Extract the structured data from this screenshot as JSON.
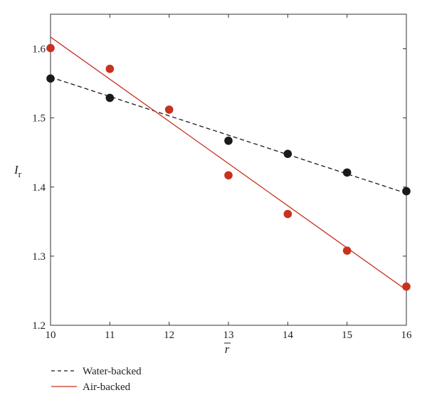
{
  "chart_data": {
    "type": "scatter",
    "xlabel": "r",
    "ylabel": "I",
    "ylabel_subscript": "r",
    "xlim": [
      10,
      16
    ],
    "ylim": [
      1.2,
      1.65
    ],
    "xticks": [
      "10",
      "11",
      "12",
      "13",
      "14",
      "15",
      "16"
    ],
    "yticks": [
      "1.2",
      "1.3",
      "1.4",
      "1.5",
      "1.6"
    ],
    "grid": false,
    "legend_position": "bottom-left",
    "series": [
      {
        "name": "Water-backed",
        "color": "#1a1a1a",
        "line_style": "dashed",
        "points": [
          {
            "x": 10,
            "y": 1.557
          },
          {
            "x": 11,
            "y": 1.529
          },
          {
            "x": 13,
            "y": 1.467
          },
          {
            "x": 14,
            "y": 1.448
          },
          {
            "x": 15,
            "y": 1.421
          },
          {
            "x": 16,
            "y": 1.394
          }
        ],
        "fit_line": [
          {
            "x": 10,
            "y": 1.559
          },
          {
            "x": 16,
            "y": 1.391
          }
        ]
      },
      {
        "name": "Air-backed",
        "color": "#c8321e",
        "line_style": "solid",
        "points": [
          {
            "x": 10,
            "y": 1.601
          },
          {
            "x": 11,
            "y": 1.571
          },
          {
            "x": 12,
            "y": 1.512
          },
          {
            "x": 13,
            "y": 1.417
          },
          {
            "x": 14,
            "y": 1.361
          },
          {
            "x": 15,
            "y": 1.308
          },
          {
            "x": 16,
            "y": 1.256
          }
        ],
        "fit_line": [
          {
            "x": 10,
            "y": 1.617
          },
          {
            "x": 16,
            "y": 1.251
          }
        ]
      }
    ]
  }
}
